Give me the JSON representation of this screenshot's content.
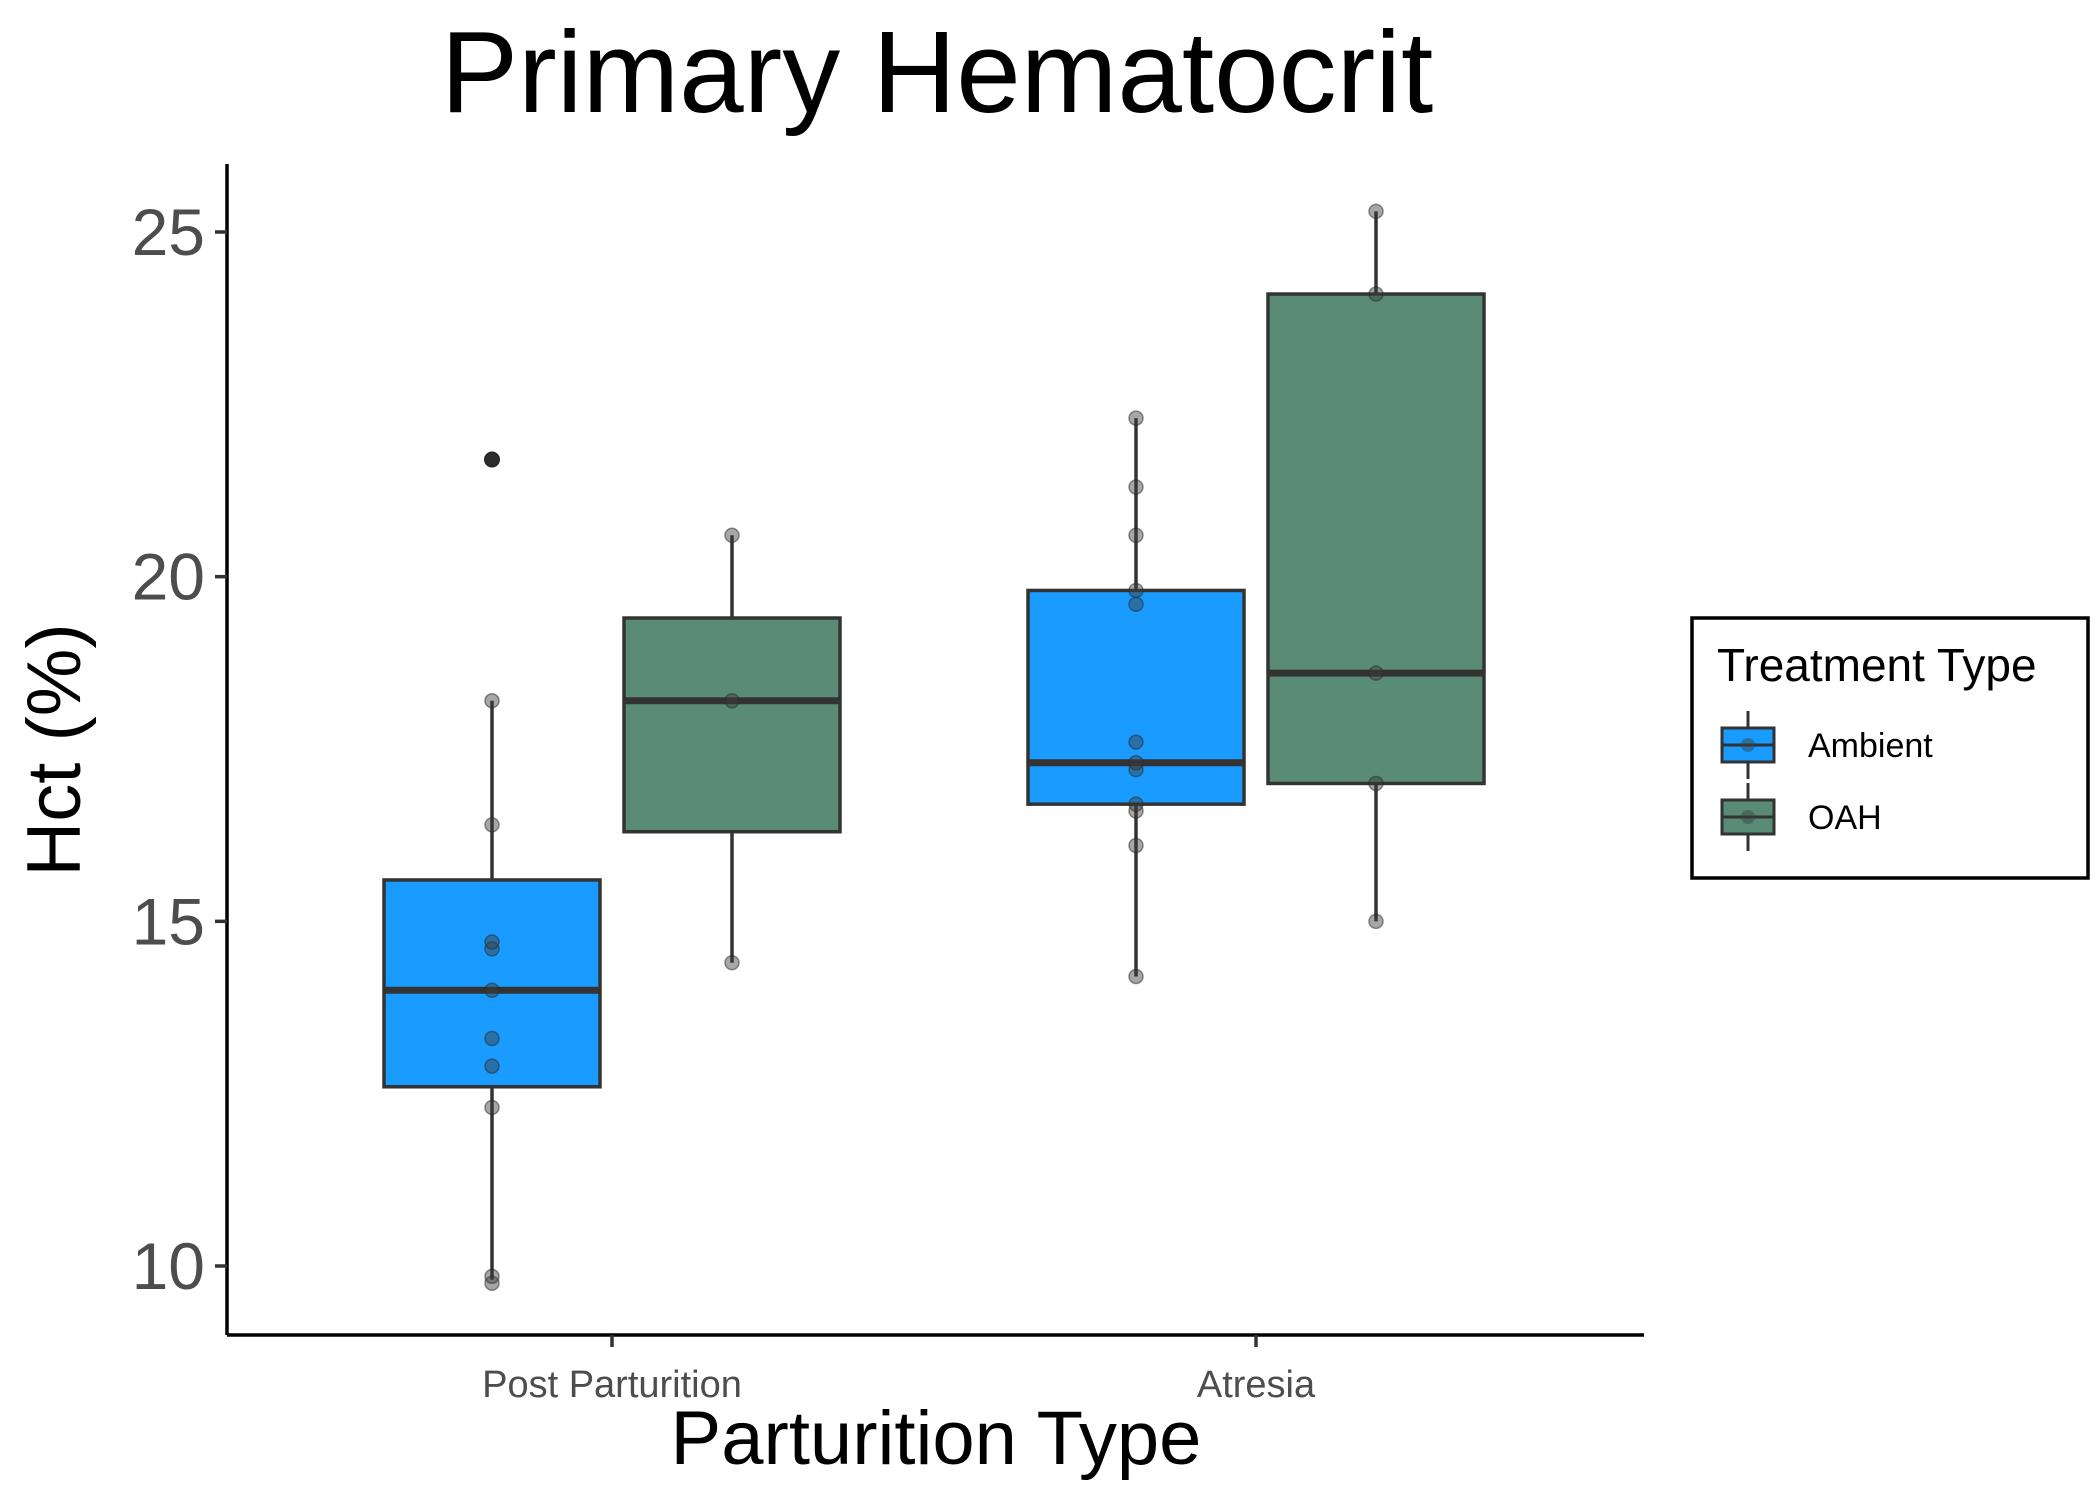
{
  "chart_data": {
    "type": "box",
    "title": "Primary Hematocrit",
    "xlabel": "Parturition Type",
    "ylabel": "Hct (%)",
    "categories": [
      "Post Parturition",
      "Atresia"
    ],
    "ylim": [
      9.0,
      26.0
    ],
    "yticks": [
      10,
      15,
      20,
      25
    ],
    "grid": false,
    "legend": {
      "title": "Treatment Type",
      "position": "right",
      "entries": [
        "Ambient",
        "OAH"
      ]
    },
    "series": [
      {
        "name": "Ambient",
        "color": "#1a9bff",
        "boxes": [
          {
            "category": "Post Parturition",
            "lower_whisker": 9.8,
            "q1": 12.6,
            "median": 14.0,
            "q3": 15.6,
            "upper_whisker": 18.2,
            "outliers": [
              21.7
            ],
            "points": [
              9.75,
              9.85,
              12.3,
              12.9,
              13.3,
              14.0,
              14.6,
              14.7,
              16.4,
              18.2,
              21.7
            ]
          },
          {
            "category": "Atresia",
            "lower_whisker": 14.2,
            "q1": 16.7,
            "median": 17.3,
            "q3": 19.8,
            "upper_whisker": 22.3,
            "outliers": [],
            "points": [
              14.2,
              16.1,
              16.6,
              16.7,
              17.2,
              17.3,
              17.6,
              19.6,
              19.8,
              20.6,
              21.3,
              22.3
            ]
          }
        ]
      },
      {
        "name": "OAH",
        "color": "#5a8b77",
        "boxes": [
          {
            "category": "Post Parturition",
            "lower_whisker": 14.4,
            "q1": 16.3,
            "median": 18.2,
            "q3": 19.4,
            "upper_whisker": 20.6,
            "outliers": [],
            "points": [
              14.4,
              18.2,
              20.6
            ]
          },
          {
            "category": "Atresia",
            "lower_whisker": 15.0,
            "q1": 17.0,
            "median": 18.6,
            "q3": 24.1,
            "upper_whisker": 25.3,
            "outliers": [],
            "points": [
              15.0,
              17.0,
              18.6,
              24.1,
              25.3
            ]
          }
        ]
      }
    ]
  }
}
